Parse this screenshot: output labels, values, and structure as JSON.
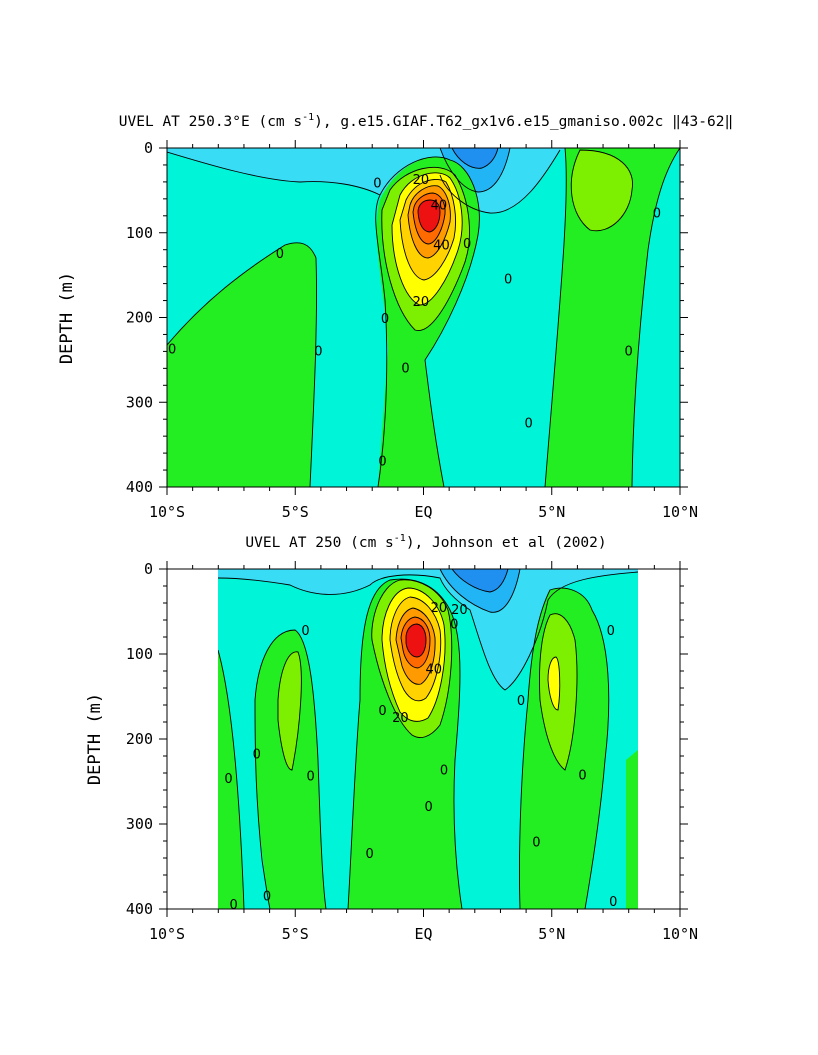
{
  "colors": {
    "c_m30": "#1f8ff0",
    "c_m20": "#22b5f5",
    "c_m10": "#38ddf5",
    "c_0": "#00f5d8",
    "c_10": "#22ee22",
    "c_20": "#7cf000",
    "c_25": "#ffff00",
    "c_30": "#ffd200",
    "c_40": "#ff9a00",
    "c_55": "#ff6a00",
    "c_70": "#ee1111"
  },
  "chart_data": [
    {
      "type": "contour",
      "title_main": "UVEL AT 250.3°E (cm s",
      "title_sup": "-1",
      "title_tail": "), g.e15.GIAF.T62_gx1v6.e15_gmaniso.002c ‖43-62‖",
      "variable": "UVEL",
      "units": "cm s-1",
      "xlabel": "",
      "ylabel": "DEPTH (m)",
      "x_ticks": [
        "10°S",
        "5°S",
        "EQ",
        "5°N",
        "10°N"
      ],
      "x_tick_values": [
        -10,
        -5,
        0,
        5,
        10
      ],
      "y_ticks": [
        "0",
        "100",
        "200",
        "300",
        "400"
      ],
      "y_tick_values": [
        0,
        100,
        200,
        300,
        400
      ],
      "xlim": [
        -10,
        10
      ],
      "ylim": [
        400,
        0
      ],
      "contour_interval": 5,
      "max_core": {
        "lat": 0,
        "depth": 90,
        "value": 70
      },
      "contour_labels": [
        {
          "text": "20",
          "lat": -0.1,
          "depth": 38
        },
        {
          "text": "40",
          "lat": 0.6,
          "depth": 68
        },
        {
          "text": "40",
          "lat": 0.7,
          "depth": 115
        },
        {
          "text": "20",
          "lat": -0.1,
          "depth": 182
        },
        {
          "text": "0",
          "lat": -1.8,
          "depth": 42
        },
        {
          "text": "0",
          "lat": -5.6,
          "depth": 125
        },
        {
          "text": "0",
          "lat": -9.8,
          "depth": 238
        },
        {
          "text": "0",
          "lat": -4.1,
          "depth": 240
        },
        {
          "text": "0",
          "lat": -1.5,
          "depth": 202
        },
        {
          "text": "0",
          "lat": -0.7,
          "depth": 260
        },
        {
          "text": "0",
          "lat": -1.6,
          "depth": 370
        },
        {
          "text": "0",
          "lat": 1.7,
          "depth": 113
        },
        {
          "text": "0",
          "lat": 3.3,
          "depth": 155
        },
        {
          "text": "0",
          "lat": 4.1,
          "depth": 325
        },
        {
          "text": "0",
          "lat": 8.0,
          "depth": 240
        },
        {
          "text": "0",
          "lat": 9.1,
          "depth": 77
        }
      ]
    },
    {
      "type": "contour",
      "title_main": "UVEL AT 250 (cm s",
      "title_sup": "-1",
      "title_tail": "), Johnson et al (2002)",
      "variable": "UVEL",
      "units": "cm s-1",
      "xlabel": "",
      "ylabel": "DEPTH (m)",
      "x_ticks": [
        "10°S",
        "5°S",
        "EQ",
        "5°N",
        "10°N"
      ],
      "x_tick_values": [
        -10,
        -5,
        0,
        5,
        10
      ],
      "y_ticks": [
        "0",
        "100",
        "200",
        "300",
        "400"
      ],
      "y_tick_values": [
        0,
        100,
        200,
        300,
        400
      ],
      "xlim": [
        -10,
        10
      ],
      "ylim": [
        400,
        0
      ],
      "data_lat_range": [
        -8,
        8.2
      ],
      "contour_interval": 5,
      "max_core": {
        "lat": -0.4,
        "depth": 75,
        "value": 70
      },
      "contour_labels": [
        {
          "text": "20",
          "lat": 0.6,
          "depth": 46
        },
        {
          "text": "20",
          "lat": 1.4,
          "depth": 48
        },
        {
          "text": "40",
          "lat": 0.4,
          "depth": 118
        },
        {
          "text": "20",
          "lat": -0.9,
          "depth": 175
        },
        {
          "text": "0",
          "lat": -4.6,
          "depth": 73
        },
        {
          "text": "0",
          "lat": -6.5,
          "depth": 218
        },
        {
          "text": "0",
          "lat": -7.6,
          "depth": 247
        },
        {
          "text": "0",
          "lat": -4.4,
          "depth": 244
        },
        {
          "text": "0",
          "lat": -6.1,
          "depth": 385
        },
        {
          "text": "0",
          "lat": -7.4,
          "depth": 395
        },
        {
          "text": "0",
          "lat": -1.6,
          "depth": 167
        },
        {
          "text": "0",
          "lat": -2.1,
          "depth": 335
        },
        {
          "text": "0",
          "lat": 0.8,
          "depth": 237
        },
        {
          "text": "0",
          "lat": 0.2,
          "depth": 280
        },
        {
          "text": "0",
          "lat": 1.2,
          "depth": 65
        },
        {
          "text": "0",
          "lat": 3.8,
          "depth": 155
        },
        {
          "text": "0",
          "lat": 4.4,
          "depth": 322
        },
        {
          "text": "0",
          "lat": 6.2,
          "depth": 243
        },
        {
          "text": "0",
          "lat": 7.3,
          "depth": 73
        },
        {
          "text": "0",
          "lat": 7.4,
          "depth": 392
        }
      ]
    }
  ]
}
